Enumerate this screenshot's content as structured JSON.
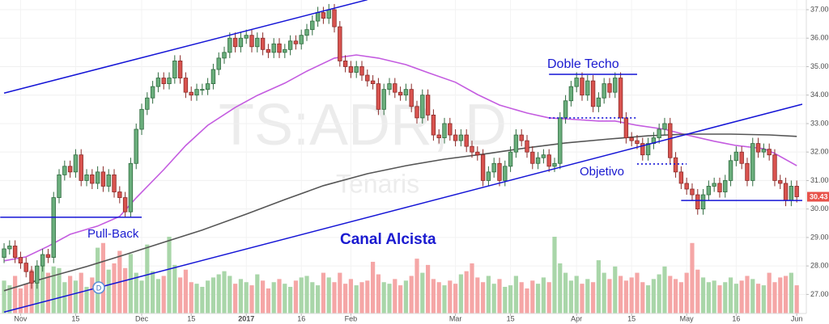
{
  "chart_data": {
    "type": "candlestick",
    "symbol_watermark": "TS:ADR, D",
    "name_watermark": "Tenaris",
    "xlim": [
      -0.74,
      145.74
    ],
    "xticks": [
      {
        "value": 3,
        "label": "Nov"
      },
      {
        "value": 13,
        "label": "15"
      },
      {
        "value": 25,
        "label": "Dec"
      },
      {
        "value": 34,
        "label": "15"
      },
      {
        "value": 44,
        "label": "2017"
      },
      {
        "value": 54,
        "label": "16"
      },
      {
        "value": 63,
        "label": "Feb"
      },
      {
        "value": 82,
        "label": "Mar"
      },
      {
        "value": 92,
        "label": "15"
      },
      {
        "value": 104,
        "label": "Apr"
      },
      {
        "value": 114,
        "label": "15"
      },
      {
        "value": 124,
        "label": "May"
      },
      {
        "value": 133,
        "label": "16"
      },
      {
        "value": 144,
        "label": "Jun"
      }
    ],
    "ylim": [
      26.33,
      37.34
    ],
    "yticks": [
      {
        "value": 27,
        "label": "27.00"
      },
      {
        "value": 28,
        "label": "28.00"
      },
      {
        "value": 29,
        "label": "29.00"
      },
      {
        "value": 30,
        "label": "30.00"
      },
      {
        "value": 31,
        "label": "31.00"
      },
      {
        "value": 32,
        "label": "32.00"
      },
      {
        "value": 33,
        "label": "33.00"
      },
      {
        "value": 34,
        "label": "34.00"
      },
      {
        "value": 35,
        "label": "35.00"
      },
      {
        "value": 36,
        "label": "36.00"
      },
      {
        "value": 37,
        "label": "37.00"
      }
    ],
    "grid": true,
    "up_color": "#6aae7c",
    "down_color": "#d9534f",
    "up_volume_color": "#a9d6a9",
    "down_volume_color": "#f5a6a6",
    "last_price_color": "#e8524a",
    "open": [
      28.3,
      28.6,
      28.7,
      28.3,
      28.1,
      27.8,
      27.4,
      28.0,
      28.4,
      28.3,
      30.4,
      31.2,
      31.5,
      31.3,
      31.9,
      31.0,
      31.2,
      30.9,
      31.3,
      30.8,
      31.2,
      30.6,
      30.4,
      29.9,
      31.6,
      32.8,
      33.5,
      33.9,
      34.3,
      34.6,
      34.4,
      34.6,
      35.2,
      34.6,
      34.1,
      34.0,
      34.2,
      34.2,
      34.4,
      34.9,
      35.3,
      35.5,
      36.0,
      35.7,
      36.0,
      36.1,
      35.7,
      36.0,
      35.6,
      35.5,
      35.8,
      35.5,
      35.6,
      35.9,
      35.8,
      36.1,
      36.3,
      36.6,
      36.9,
      36.7,
      37.0,
      36.4,
      35.2,
      35.0,
      34.8,
      35.0,
      34.7,
      34.5,
      34.4,
      33.5,
      34.2,
      34.4,
      34.1,
      34.0,
      34.2,
      33.6,
      33.2,
      34.0,
      33.3,
      32.6,
      32.5,
      33.0,
      32.6,
      32.4,
      32.6,
      32.2,
      32.0,
      31.9,
      31.0,
      31.3,
      31.6,
      31.0,
      31.5,
      32.0,
      32.6,
      32.4,
      32.0,
      31.6,
      31.8,
      31.9,
      31.5,
      31.6,
      33.2,
      33.8,
      34.3,
      34.6,
      34.0,
      34.5,
      33.6,
      33.9,
      34.4,
      34.1,
      34.6,
      33.2,
      32.5,
      32.4,
      32.3,
      31.9,
      32.3,
      32.5,
      32.8,
      33.0,
      31.8,
      31.3,
      30.9,
      30.7,
      30.5,
      30.0,
      30.5,
      30.8,
      30.9,
      30.6,
      31.0,
      31.7,
      32.0,
      31.6,
      31.0,
      32.3,
      32.0,
      32.1,
      31.9,
      31.0,
      30.9,
      30.3,
      30.8
    ],
    "high": [
      28.8,
      28.9,
      28.9,
      28.5,
      28.3,
      28.0,
      28.2,
      28.6,
      28.6,
      30.6,
      31.4,
      31.7,
      31.7,
      32.1,
      32.1,
      31.4,
      31.4,
      31.5,
      31.5,
      31.4,
      31.4,
      30.8,
      30.6,
      31.8,
      33.0,
      33.7,
      34.1,
      34.5,
      34.8,
      34.8,
      34.8,
      35.4,
      35.4,
      34.8,
      34.3,
      34.4,
      34.4,
      34.6,
      35.1,
      35.5,
      35.7,
      36.2,
      36.2,
      36.2,
      36.3,
      36.3,
      36.2,
      36.2,
      35.8,
      36.0,
      36.0,
      35.8,
      36.1,
      36.1,
      36.3,
      36.5,
      36.8,
      37.1,
      37.1,
      37.2,
      37.2,
      36.6,
      35.4,
      35.2,
      35.2,
      35.2,
      34.9,
      34.7,
      34.6,
      34.4,
      34.6,
      34.6,
      34.3,
      34.4,
      34.4,
      33.8,
      34.2,
      34.2,
      33.5,
      32.8,
      33.2,
      33.2,
      32.8,
      32.8,
      32.8,
      32.4,
      32.2,
      32.1,
      31.5,
      31.8,
      31.8,
      31.7,
      32.2,
      32.8,
      32.8,
      32.6,
      32.2,
      32.0,
      32.1,
      32.1,
      31.8,
      33.4,
      34.0,
      34.5,
      34.8,
      34.8,
      34.7,
      34.7,
      34.1,
      34.6,
      34.6,
      34.8,
      34.8,
      33.4,
      32.7,
      32.6,
      32.5,
      32.5,
      32.7,
      33.0,
      33.2,
      33.2,
      32.0,
      31.5,
      31.1,
      30.9,
      30.7,
      30.7,
      31.0,
      31.1,
      31.1,
      31.2,
      31.9,
      32.2,
      32.2,
      31.8,
      32.5,
      32.5,
      32.3,
      32.3,
      32.1,
      31.2,
      31.1,
      31.0,
      31.0
    ],
    "low": [
      28.1,
      28.4,
      28.1,
      27.9,
      27.6,
      27.2,
      27.2,
      27.8,
      28.1,
      28.1,
      30.2,
      31.0,
      31.1,
      31.1,
      30.8,
      30.8,
      30.7,
      30.7,
      30.6,
      30.6,
      30.4,
      30.2,
      29.7,
      29.7,
      31.4,
      32.6,
      33.3,
      33.7,
      34.1,
      34.2,
      34.2,
      34.4,
      34.4,
      33.9,
      33.8,
      33.8,
      34.0,
      34.0,
      34.2,
      34.7,
      35.1,
      35.3,
      35.5,
      35.5,
      35.8,
      35.5,
      35.5,
      35.4,
      35.3,
      35.3,
      35.3,
      35.3,
      35.4,
      35.6,
      35.6,
      35.9,
      36.1,
      36.4,
      36.5,
      36.5,
      36.2,
      35.0,
      34.8,
      34.6,
      34.6,
      34.5,
      34.3,
      34.2,
      33.3,
      33.3,
      34.0,
      33.9,
      33.8,
      33.8,
      33.4,
      33.0,
      33.0,
      33.1,
      32.4,
      32.3,
      32.3,
      32.4,
      32.2,
      32.2,
      32.0,
      31.8,
      31.7,
      30.8,
      30.8,
      31.1,
      30.8,
      30.8,
      31.3,
      31.8,
      32.2,
      31.8,
      31.4,
      31.4,
      31.6,
      31.3,
      31.3,
      31.4,
      33.0,
      33.6,
      34.1,
      33.8,
      33.8,
      33.4,
      33.4,
      33.7,
      33.9,
      33.9,
      33.0,
      32.3,
      32.2,
      32.1,
      31.7,
      31.7,
      32.1,
      32.3,
      32.6,
      31.6,
      31.1,
      30.7,
      30.5,
      30.3,
      29.8,
      29.8,
      30.3,
      30.6,
      30.4,
      30.4,
      30.8,
      31.5,
      31.4,
      30.8,
      30.8,
      31.8,
      31.8,
      31.7,
      30.8,
      30.7,
      30.1,
      30.1,
      30.23
    ],
    "close": [
      28.6,
      28.7,
      28.3,
      28.1,
      27.8,
      27.4,
      28.0,
      28.4,
      28.3,
      30.4,
      31.2,
      31.5,
      31.3,
      31.9,
      31.0,
      31.2,
      30.9,
      31.3,
      30.8,
      31.2,
      30.6,
      30.4,
      29.9,
      31.6,
      32.8,
      33.5,
      33.9,
      34.3,
      34.6,
      34.4,
      34.6,
      35.2,
      34.6,
      34.1,
      34.0,
      34.2,
      34.2,
      34.4,
      34.9,
      35.3,
      35.5,
      36.0,
      35.7,
      36.0,
      36.1,
      35.7,
      36.0,
      35.6,
      35.5,
      35.8,
      35.5,
      35.6,
      35.9,
      35.8,
      36.1,
      36.3,
      36.6,
      36.9,
      36.7,
      37.0,
      36.4,
      35.2,
      35.0,
      34.8,
      35.0,
      34.7,
      34.5,
      34.4,
      33.5,
      34.2,
      34.4,
      34.1,
      34.0,
      34.2,
      33.6,
      33.2,
      34.0,
      33.3,
      32.6,
      32.5,
      33.0,
      32.6,
      32.4,
      32.6,
      32.2,
      32.0,
      31.9,
      31.0,
      31.3,
      31.6,
      31.0,
      31.5,
      32.0,
      32.6,
      32.4,
      32.0,
      31.6,
      31.8,
      31.9,
      31.5,
      31.6,
      33.2,
      33.8,
      34.3,
      34.6,
      34.0,
      34.5,
      33.6,
      33.9,
      34.4,
      34.1,
      34.6,
      33.2,
      32.5,
      32.4,
      32.3,
      31.9,
      32.3,
      32.5,
      32.8,
      33.0,
      31.8,
      31.3,
      30.9,
      30.7,
      30.5,
      30.0,
      30.5,
      30.8,
      30.9,
      30.6,
      31.0,
      31.7,
      32.0,
      31.6,
      31.0,
      32.3,
      32.0,
      32.1,
      31.9,
      31.0,
      30.9,
      30.3,
      30.8,
      30.43
    ],
    "volume": [
      2.1,
      1.8,
      2.4,
      1.6,
      1.9,
      2.8,
      2.2,
      3.5,
      2.6,
      3.0,
      2.9,
      2.0,
      2.4,
      2.1,
      2.6,
      1.7,
      2.3,
      4.2,
      4.5,
      2.8,
      3.2,
      4.0,
      2.9,
      3.8,
      2.6,
      2.1,
      4.4,
      2.7,
      2.2,
      2.4,
      4.9,
      3.1,
      2.3,
      2.8,
      2.0,
      1.9,
      1.7,
      2.1,
      2.3,
      2.5,
      2.7,
      2.4,
      1.9,
      2.2,
      2.0,
      1.8,
      2.5,
      2.1,
      1.6,
      2.0,
      2.2,
      1.9,
      1.7,
      2.1,
      2.3,
      2.4,
      2.0,
      1.8,
      2.6,
      2.3,
      2.0,
      2.6,
      1.9,
      2.2,
      1.8,
      2.0,
      2.1,
      3.3,
      2.5,
      2.0,
      1.9,
      2.2,
      1.8,
      2.1,
      2.4,
      3.5,
      2.6,
      3.1,
      2.2,
      2.0,
      1.8,
      2.1,
      1.9,
      2.5,
      2.7,
      3.2,
      2.3,
      2.0,
      2.4,
      1.9,
      2.2,
      1.7,
      1.8,
      2.4,
      2.0,
      1.6,
      2.1,
      1.9,
      2.3,
      2.0,
      4.9,
      3.2,
      2.6,
      2.1,
      2.4,
      1.9,
      2.2,
      2.0,
      3.4,
      2.6,
      2.2,
      3.0,
      2.4,
      2.1,
      2.3,
      2.6,
      2.0,
      1.8,
      2.2,
      2.5,
      3.0,
      2.4,
      2.2,
      2.0,
      2.6,
      4.5,
      2.8,
      2.3,
      2.0,
      2.1,
      1.8,
      2.0,
      2.3,
      1.9,
      2.1,
      2.4,
      2.2,
      1.9,
      1.8,
      2.6,
      2.0,
      2.3,
      2.4,
      2.6,
      1.8
    ],
    "moving_averages": [
      {
        "color": "#c45ce0",
        "x": [
          0,
          4,
          8,
          12,
          17,
          21,
          24,
          29,
          33,
          37,
          42,
          46,
          51,
          55,
          60,
          64,
          68,
          73,
          77,
          82,
          86,
          90,
          95,
          99,
          104,
          108,
          111,
          115,
          120,
          124,
          129,
          133,
          138,
          140,
          144
        ],
        "values": [
          28.18,
          28.32,
          28.69,
          29.11,
          29.4,
          29.74,
          30.39,
          31.38,
          32.23,
          32.94,
          33.57,
          33.99,
          34.42,
          34.84,
          35.3,
          35.41,
          35.3,
          35.07,
          34.79,
          34.45,
          34.02,
          33.65,
          33.37,
          33.2,
          33.14,
          33.09,
          33.09,
          32.94,
          32.8,
          32.6,
          32.38,
          32.23,
          32.12,
          31.95,
          31.52
        ]
      },
      {
        "color": "#555555",
        "x": [
          0,
          7,
          15,
          22,
          29,
          36,
          44,
          51,
          58,
          66,
          73,
          80,
          88,
          95,
          102,
          110,
          117,
          124,
          132,
          139,
          144
        ],
        "values": [
          27.13,
          27.55,
          27.98,
          28.4,
          28.83,
          29.26,
          29.82,
          30.33,
          30.82,
          31.24,
          31.52,
          31.75,
          31.95,
          32.15,
          32.32,
          32.46,
          32.57,
          32.63,
          32.63,
          32.6,
          32.55
        ]
      }
    ],
    "trendlines": [
      {
        "x": [
          0,
          66
        ],
        "y": [
          34.07,
          37.35
        ],
        "style": "solid",
        "color": "#1414d6"
      },
      {
        "x": [
          0,
          145
        ],
        "y": [
          26.38,
          33.68
        ],
        "style": "solid",
        "color": "#1414d6"
      },
      {
        "x": [
          -0.7,
          25
        ],
        "y": [
          29.71,
          29.71
        ],
        "style": "solid",
        "color": "#1414d6"
      },
      {
        "x": [
          99,
          115
        ],
        "y": [
          34.73,
          34.73
        ],
        "style": "solid",
        "color": "#1414d6"
      },
      {
        "x": [
          99,
          115
        ],
        "y": [
          33.2,
          33.2
        ],
        "style": "dotted",
        "color": "#1414d6"
      },
      {
        "x": [
          115,
          124
        ],
        "y": [
          31.58,
          31.58
        ],
        "style": "dotted",
        "color": "#1414d6"
      },
      {
        "x": [
          123,
          145
        ],
        "y": [
          30.3,
          30.3
        ],
        "style": "solid",
        "color": "#1414d6"
      }
    ],
    "annotations": {
      "doble_techo": "Doble Techo",
      "pull_back": "Pull-Back",
      "canal": "Canal Alcista",
      "objetivo": "Objetivo",
      "dividend": "D"
    }
  }
}
